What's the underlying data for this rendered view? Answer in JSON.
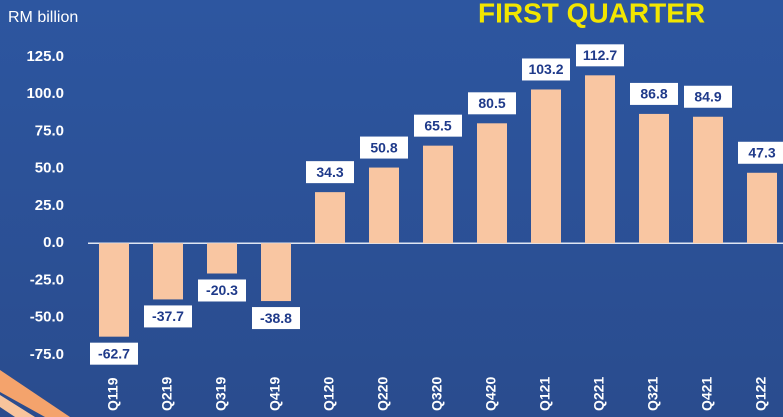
{
  "chart_data": {
    "type": "bar",
    "title": "FIRST QUARTER",
    "y_label": "RM billion",
    "categories": [
      "Q119",
      "Q219",
      "Q319",
      "Q419",
      "Q120",
      "Q220",
      "Q320",
      "Q420",
      "Q121",
      "Q221",
      "Q321",
      "Q421",
      "Q122"
    ],
    "values": [
      -62.7,
      -37.7,
      -20.3,
      -38.8,
      34.3,
      50.8,
      65.5,
      80.5,
      103.2,
      112.7,
      86.8,
      84.9,
      47.3
    ],
    "color": "#f9c6a2",
    "ylim": [
      -75,
      125
    ],
    "yticks": [
      {
        "value": 125,
        "label": "125.0"
      },
      {
        "value": 100,
        "label": "100.0"
      },
      {
        "value": 75,
        "label": "75.0"
      },
      {
        "value": 50,
        "label": "50.0"
      },
      {
        "value": 25,
        "label": "25.0"
      },
      {
        "value": 0,
        "label": "0.0"
      },
      {
        "value": -25,
        "label": "-25.0"
      },
      {
        "value": -50,
        "label": "-50.0"
      },
      {
        "value": -75,
        "label": "-75.0"
      }
    ],
    "grid": false
  }
}
